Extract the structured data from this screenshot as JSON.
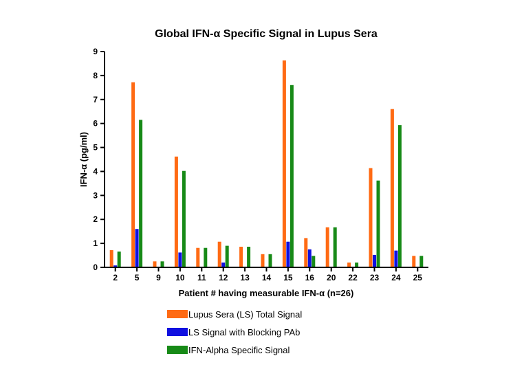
{
  "chart_data": {
    "type": "bar",
    "title": "Global IFN-α Specific Signal in Lupus Sera",
    "xlabel": "Patient # having measurable IFN-α (n=26)",
    "ylabel": "IFN-α (pg/ml)",
    "ylim": [
      0,
      9
    ],
    "yticks": [
      0,
      1,
      2,
      3,
      4,
      5,
      6,
      7,
      8,
      9
    ],
    "categories": [
      "2",
      "5",
      "9",
      "10",
      "11",
      "12",
      "13",
      "14",
      "15",
      "16",
      "20",
      "22",
      "23",
      "24",
      "25"
    ],
    "series": [
      {
        "name": "Lupus Sera (LS) Total Signal",
        "color": "#ff6a13",
        "values": [
          0.72,
          7.72,
          0.25,
          4.62,
          0.81,
          1.07,
          0.86,
          0.55,
          8.63,
          1.22,
          1.67,
          0.2,
          4.14,
          6.6,
          0.48
        ]
      },
      {
        "name": "LS Signal with Blocking PAb",
        "color": "#1010e0",
        "values": [
          0.08,
          1.6,
          0.0,
          0.62,
          0.0,
          0.2,
          0.0,
          0.0,
          1.07,
          0.75,
          0.0,
          0.0,
          0.52,
          0.7,
          0.0
        ]
      },
      {
        "name": "IFN-Alpha Specific Signal",
        "color": "#178a17",
        "values": [
          0.66,
          6.15,
          0.25,
          4.02,
          0.81,
          0.9,
          0.86,
          0.55,
          7.6,
          0.48,
          1.67,
          0.2,
          3.62,
          5.93,
          0.48
        ]
      }
    ],
    "grid": false,
    "legend_position": "bottom"
  }
}
